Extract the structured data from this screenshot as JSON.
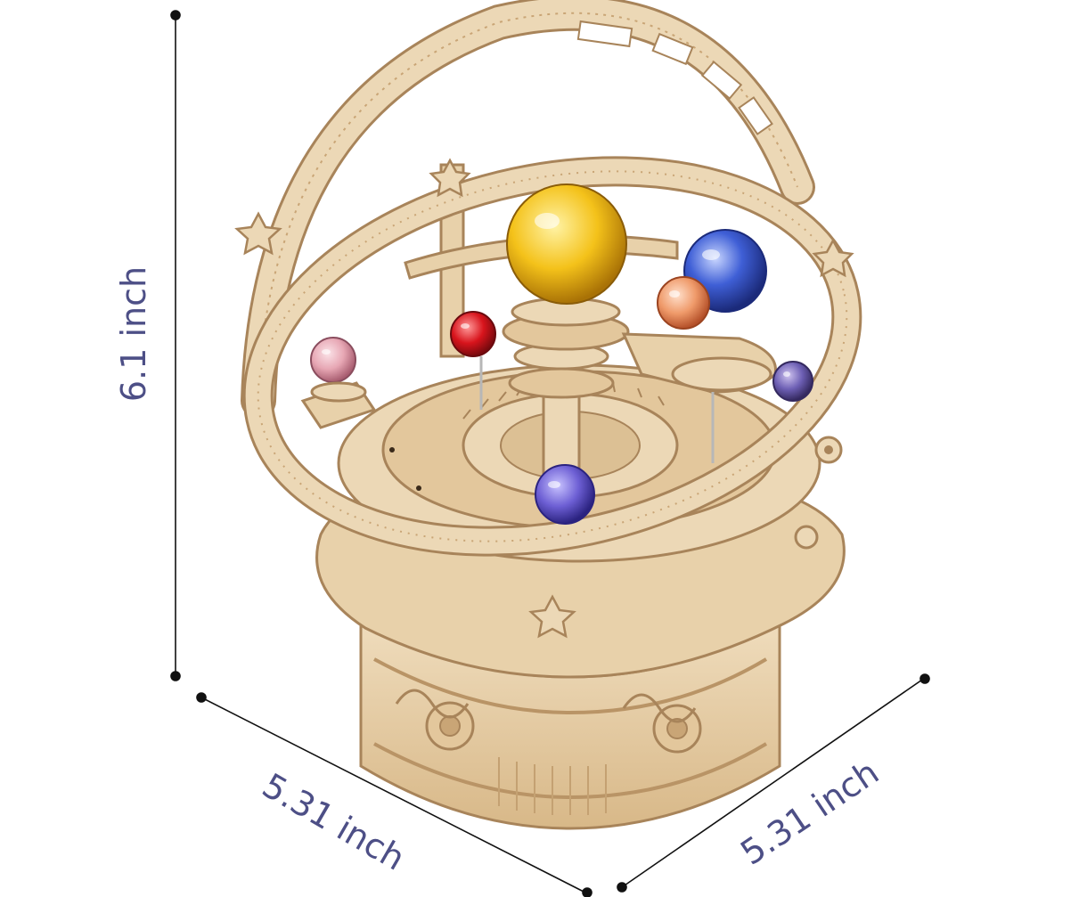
{
  "dimensions": {
    "height_label": "6.1 inch",
    "width_left_label": "5.31 inch",
    "width_right_label": "5.31 inch"
  },
  "colors": {
    "dimension_text": "#4d4f86",
    "dimension_line": "#111111",
    "wood_light": "#ecd8b6",
    "wood_mid": "#d9bb8c",
    "wood_dark": "#a8845a",
    "gem_yellow": "#f4c21a",
    "gem_blue": "#3f5fd6",
    "gem_red": "#d8141c",
    "gem_orange": "#ef9a6a",
    "gem_pink": "#e7a7b4",
    "gem_purple": "#6d5fb4",
    "gem_violet": "#5d4d9f"
  },
  "product": {
    "subject": "wooden-planetarium-music-box"
  }
}
